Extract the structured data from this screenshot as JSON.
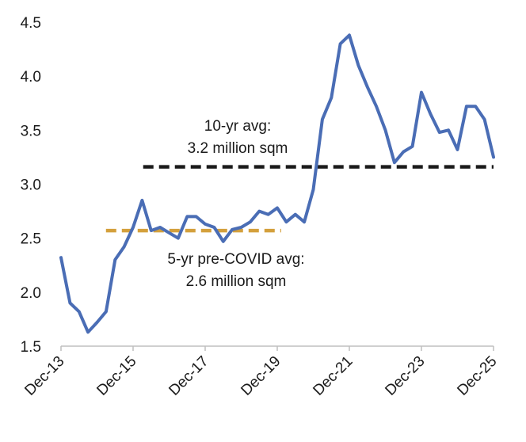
{
  "chart_data": {
    "type": "line",
    "categories": [
      "Dec-13",
      null,
      null,
      null,
      null,
      null,
      null,
      null,
      "Dec-15",
      null,
      null,
      null,
      null,
      null,
      null,
      null,
      "Dec-17",
      null,
      null,
      null,
      null,
      null,
      null,
      null,
      "Dec-19",
      null,
      null,
      null,
      null,
      null,
      null,
      null,
      "Dec-21",
      null,
      null,
      null,
      null,
      null,
      null,
      null,
      "Dec-23",
      null,
      null,
      null,
      null,
      null,
      null,
      null,
      "Dec-25"
    ],
    "series": [
      {
        "color": "#4a6db5",
        "values": [
          2.32,
          1.9,
          1.82,
          1.63,
          1.72,
          1.82,
          2.3,
          2.42,
          2.6,
          2.85,
          2.57,
          2.6,
          2.55,
          2.5,
          2.7,
          2.7,
          2.63,
          2.6,
          2.47,
          2.58,
          2.6,
          2.65,
          2.75,
          2.72,
          2.78,
          2.65,
          2.72,
          2.65,
          2.95,
          3.6,
          3.8,
          4.3,
          4.38,
          4.1,
          3.9,
          3.72,
          3.5,
          3.2,
          3.3,
          3.35,
          3.85,
          3.65,
          3.48,
          3.5,
          3.32,
          3.72,
          3.72,
          3.6,
          3.25
        ]
      }
    ],
    "reference_lines": [
      {
        "value": 3.16,
        "color": "#1a1a1a",
        "label": [
          "10-yr avg:",
          "3.2 million sqm"
        ]
      },
      {
        "value": 2.57,
        "color": "#d4a03c",
        "label": [
          "5-yr pre-COVID avg:",
          "2.6 million sqm"
        ]
      }
    ],
    "ylim": [
      1.5,
      4.5
    ],
    "yticks": [
      {
        "value": 1.5,
        "label": "1.5"
      },
      {
        "value": 2.0,
        "label": "2.0"
      },
      {
        "value": 2.5,
        "label": "2.5"
      },
      {
        "value": 3.0,
        "label": "3.0"
      },
      {
        "value": 3.5,
        "label": "3.5"
      },
      {
        "value": 4.0,
        "label": "4.0"
      },
      {
        "value": 4.5,
        "label": "4.5"
      }
    ]
  }
}
